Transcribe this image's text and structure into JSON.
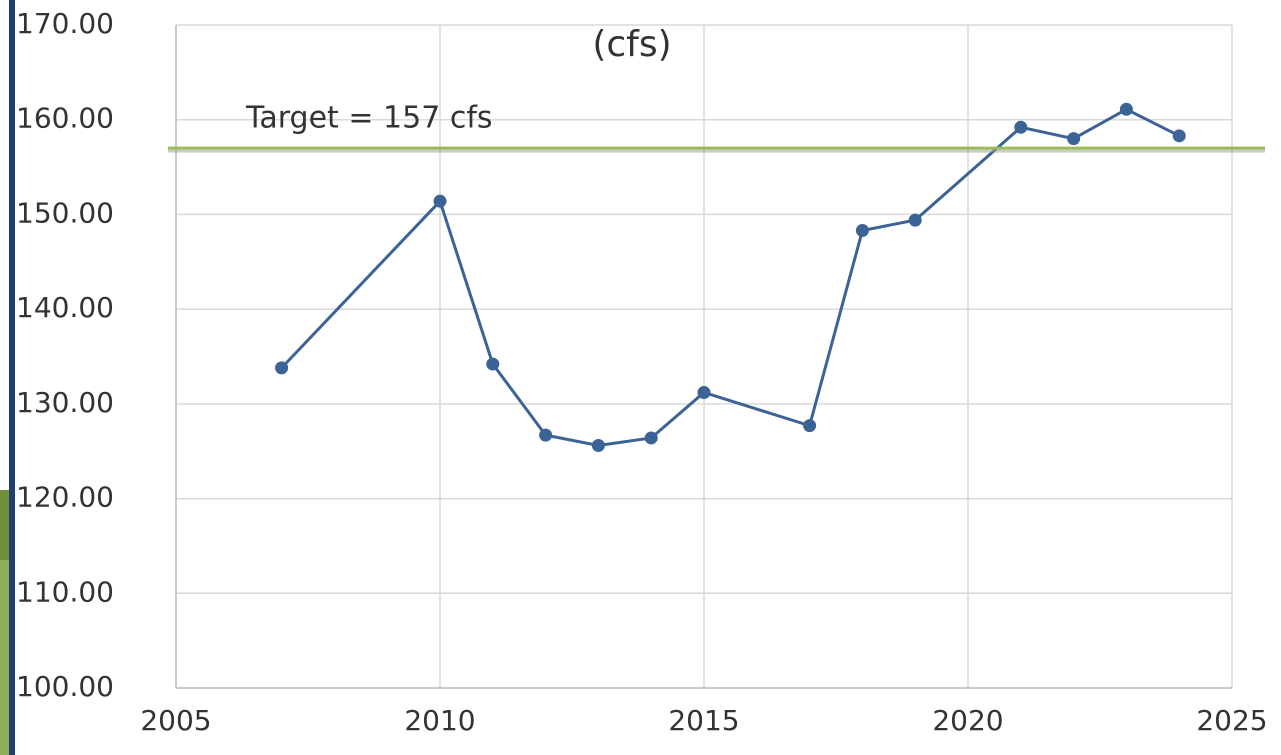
{
  "chart_data": {
    "type": "line",
    "title": "(cfs)",
    "x": [
      2007,
      2010,
      2011,
      2012,
      2013,
      2014,
      2015,
      2017,
      2018,
      2019,
      2021,
      2022,
      2023,
      2024
    ],
    "series": [
      {
        "color": "#3c6396",
        "values": [
          133.8,
          151.4,
          134.2,
          126.7,
          125.6,
          126.4,
          131.2,
          127.7,
          148.3,
          149.4,
          159.2,
          158.0,
          161.1,
          158.3
        ]
      }
    ],
    "xlim": [
      2005,
      2025
    ],
    "xticks": [
      2005,
      2010,
      2015,
      2020,
      2025
    ],
    "ylim": [
      100,
      170
    ],
    "yticks": [
      {
        "value": 100,
        "label": "100.00"
      },
      {
        "value": 110,
        "label": "110.00"
      },
      {
        "value": 120,
        "label": "120.00"
      },
      {
        "value": 130,
        "label": "130.00"
      },
      {
        "value": 140,
        "label": "140.00"
      },
      {
        "value": 150,
        "label": "150.00"
      },
      {
        "value": 160,
        "label": "160.00"
      },
      {
        "value": 170,
        "label": "170.00"
      }
    ],
    "grid": true,
    "reference_line": {
      "value": 157,
      "label": "Target = 157 cfs",
      "color": "#9bbb59"
    }
  }
}
